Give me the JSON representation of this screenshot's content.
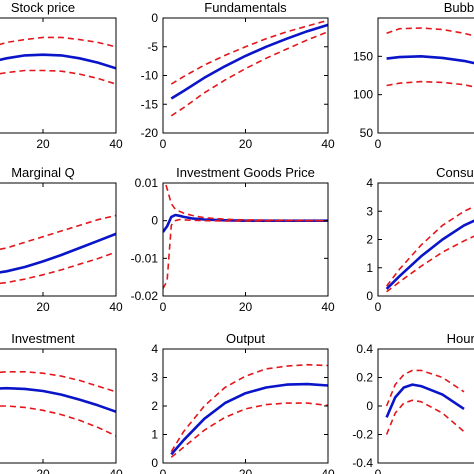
{
  "colors": {
    "background": "#ffffff",
    "axis": "#000000",
    "median": "#0a14c8",
    "band": "#e3171b"
  },
  "chart_data": [
    {
      "type": "line",
      "title": "Stock price",
      "xlim": [
        0,
        40
      ],
      "xticks": [
        20,
        40
      ],
      "ylim": [
        -4,
        4
      ],
      "yticks": [],
      "x": [
        0,
        5,
        10,
        15,
        20,
        25,
        30,
        35,
        40
      ],
      "series": [
        {
          "role": "median",
          "values": [
            0.5,
            0.9,
            1.2,
            1.4,
            1.45,
            1.4,
            1.2,
            0.9,
            0.5
          ]
        },
        {
          "role": "upper",
          "values": [
            1.5,
            1.9,
            2.3,
            2.5,
            2.65,
            2.65,
            2.5,
            2.3,
            2.0
          ]
        },
        {
          "role": "lower",
          "values": [
            -0.2,
            0.0,
            0.2,
            0.35,
            0.35,
            0.3,
            0.1,
            -0.2,
            -0.6
          ]
        }
      ]
    },
    {
      "type": "line",
      "title": "Fundamentals",
      "xlim": [
        0,
        40
      ],
      "xticks": [
        0,
        20,
        40
      ],
      "ylim": [
        -20,
        0
      ],
      "yticks": [
        -20,
        -15,
        -10,
        -5,
        0
      ],
      "x": [
        2,
        5,
        10,
        15,
        20,
        25,
        30,
        35,
        40
      ],
      "series": [
        {
          "role": "median",
          "values": [
            -14,
            -12.7,
            -10.4,
            -8.4,
            -6.6,
            -5.0,
            -3.6,
            -2.3,
            -1.2
          ]
        },
        {
          "role": "upper",
          "values": [
            -11.5,
            -10.2,
            -8.2,
            -6.5,
            -5.0,
            -3.6,
            -2.4,
            -1.4,
            -0.4
          ]
        },
        {
          "role": "lower",
          "values": [
            -17,
            -15.6,
            -13.0,
            -10.8,
            -8.8,
            -7.0,
            -5.4,
            -3.8,
            -2.4
          ]
        }
      ]
    },
    {
      "type": "line",
      "title": "Bubble",
      "xlim": [
        0,
        40
      ],
      "xticks": [
        0
      ],
      "ylim": [
        50,
        200
      ],
      "yticks": [
        50,
        100,
        150
      ],
      "x": [
        2,
        5,
        10,
        15,
        20,
        25,
        30
      ],
      "series": [
        {
          "role": "median",
          "values": [
            147,
            149,
            150,
            148,
            144,
            138,
            131
          ]
        },
        {
          "role": "upper",
          "values": [
            180,
            186,
            187,
            185,
            180,
            173,
            164
          ]
        },
        {
          "role": "lower",
          "values": [
            112,
            115,
            117,
            116,
            113,
            107,
            100
          ]
        }
      ]
    },
    {
      "type": "line",
      "title": "Marginal Q",
      "xlim": [
        0,
        40
      ],
      "xticks": [
        20,
        40
      ],
      "ylim": [
        -4,
        4
      ],
      "yticks": [],
      "x": [
        0,
        5,
        10,
        15,
        20,
        25,
        30,
        35,
        40
      ],
      "series": [
        {
          "role": "median",
          "values": [
            -2.6,
            -2.45,
            -2.25,
            -1.95,
            -1.55,
            -1.1,
            -0.6,
            -0.1,
            0.4
          ]
        },
        {
          "role": "upper",
          "values": [
            -1.0,
            -0.85,
            -0.6,
            -0.2,
            0.2,
            0.6,
            1.0,
            1.4,
            1.7
          ]
        },
        {
          "role": "lower",
          "values": [
            -3.3,
            -3.2,
            -3.05,
            -2.8,
            -2.5,
            -2.15,
            -1.75,
            -1.35,
            -0.9
          ]
        }
      ]
    },
    {
      "type": "line",
      "title": "Investment Goods Price",
      "xlim": [
        0,
        40
      ],
      "xticks": [
        0,
        20,
        40
      ],
      "ylim": [
        -0.02,
        0.01
      ],
      "yticks": [
        -0.02,
        -0.01,
        0,
        0.01
      ],
      "x": [
        0,
        1,
        2,
        3,
        4,
        5,
        7,
        10,
        15,
        20,
        30,
        40
      ],
      "series": [
        {
          "role": "median",
          "values": [
            -0.003,
            -0.0015,
            0.001,
            0.0015,
            0.0013,
            0.001,
            0.0006,
            0.0003,
            0.0001,
            0.0,
            0.0,
            0.0
          ]
        },
        {
          "role": "upper",
          "values": [
            0.012,
            0.0085,
            0.0045,
            0.003,
            0.0025,
            0.002,
            0.0014,
            0.0008,
            0.0004,
            0.0002,
            0.0001,
            0.0
          ]
        },
        {
          "role": "lower",
          "values": [
            -0.018,
            -0.016,
            -0.0012,
            0.0,
            0.0003,
            0.0002,
            0.0001,
            0.0,
            -0.0001,
            -0.0001,
            0.0,
            0.0
          ]
        }
      ]
    },
    {
      "type": "line",
      "title": "Consump",
      "xlim": [
        0,
        40
      ],
      "xticks": [
        0
      ],
      "ylim": [
        0,
        4
      ],
      "yticks": [
        0,
        1,
        2,
        3,
        4
      ],
      "x": [
        2,
        5,
        10,
        15,
        20,
        25
      ],
      "series": [
        {
          "role": "median",
          "values": [
            0.25,
            0.7,
            1.4,
            2.0,
            2.5,
            2.85
          ]
        },
        {
          "role": "upper",
          "values": [
            0.35,
            0.95,
            1.8,
            2.5,
            3.0,
            3.35
          ]
        },
        {
          "role": "lower",
          "values": [
            0.15,
            0.5,
            1.05,
            1.55,
            1.95,
            2.3
          ]
        }
      ]
    },
    {
      "type": "line",
      "title": "Investment",
      "xlim": [
        0,
        40
      ],
      "xticks": [
        20,
        40
      ],
      "ylim": [
        -4,
        4
      ],
      "yticks": [],
      "x": [
        0,
        5,
        10,
        15,
        20,
        25,
        30,
        35,
        40
      ],
      "series": [
        {
          "role": "median",
          "values": [
            1.1,
            1.2,
            1.25,
            1.2,
            1.05,
            0.8,
            0.45,
            0.05,
            -0.4
          ]
        },
        {
          "role": "upper",
          "values": [
            2.1,
            2.3,
            2.4,
            2.4,
            2.3,
            2.1,
            1.8,
            1.4,
            1.0
          ]
        },
        {
          "role": "lower",
          "values": [
            -0.1,
            0.0,
            0.0,
            -0.1,
            -0.3,
            -0.6,
            -1.0,
            -1.5,
            -2.1
          ]
        }
      ]
    },
    {
      "type": "line",
      "title": "Output",
      "xlim": [
        0,
        40
      ],
      "xticks": [
        0,
        20,
        40
      ],
      "ylim": [
        0,
        4
      ],
      "yticks": [
        0,
        1,
        2,
        3,
        4
      ],
      "x": [
        2,
        5,
        10,
        15,
        20,
        25,
        30,
        35,
        40
      ],
      "series": [
        {
          "role": "median",
          "values": [
            0.3,
            0.8,
            1.55,
            2.1,
            2.45,
            2.65,
            2.75,
            2.77,
            2.72
          ]
        },
        {
          "role": "upper",
          "values": [
            0.4,
            1.1,
            2.0,
            2.65,
            3.05,
            3.3,
            3.4,
            3.45,
            3.42
          ]
        },
        {
          "role": "lower",
          "values": [
            0.2,
            0.55,
            1.15,
            1.6,
            1.9,
            2.05,
            2.1,
            2.1,
            2.02
          ]
        }
      ]
    },
    {
      "type": "line",
      "title": "Hours",
      "xlim": [
        0,
        40
      ],
      "xticks": [
        0
      ],
      "ylim": [
        -0.4,
        0.4
      ],
      "yticks": [
        -0.4,
        -0.2,
        0,
        0.2,
        0.4
      ],
      "x": [
        2,
        4,
        6,
        8,
        10,
        15,
        20
      ],
      "series": [
        {
          "role": "median",
          "values": [
            -0.08,
            0.06,
            0.13,
            0.15,
            0.14,
            0.08,
            -0.02
          ]
        },
        {
          "role": "upper",
          "values": [
            0.0,
            0.15,
            0.22,
            0.25,
            0.25,
            0.2,
            0.1
          ]
        },
        {
          "role": "lower",
          "values": [
            -0.2,
            -0.05,
            0.02,
            0.04,
            0.03,
            -0.05,
            -0.18
          ]
        }
      ]
    }
  ]
}
